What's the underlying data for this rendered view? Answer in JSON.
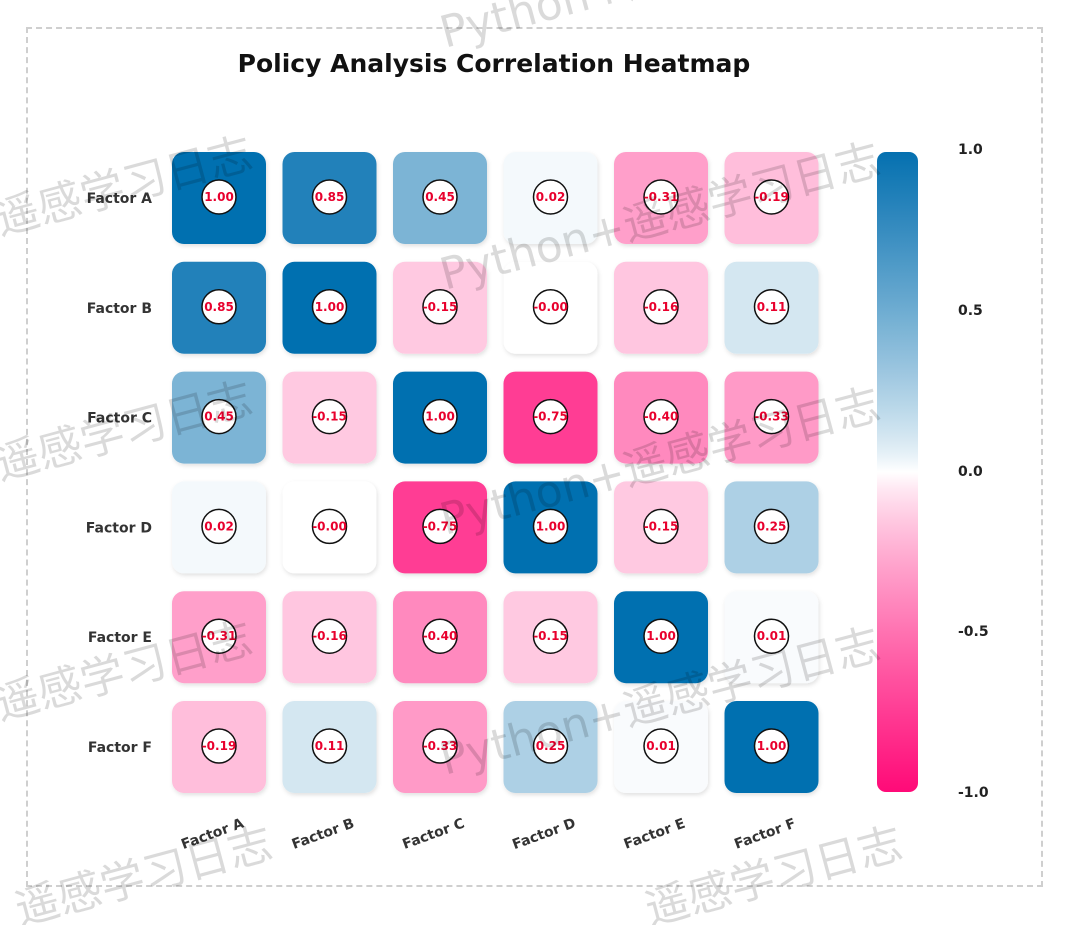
{
  "chart_data": {
    "type": "heatmap",
    "title": "Policy Analysis Correlation Heatmap",
    "rows": [
      "Factor A",
      "Factor B",
      "Factor C",
      "Factor D",
      "Factor E",
      "Factor F"
    ],
    "columns": [
      "Factor A",
      "Factor B",
      "Factor C",
      "Factor D",
      "Factor E",
      "Factor F"
    ],
    "values": [
      [
        1.0,
        0.85,
        0.45,
        0.02,
        -0.31,
        -0.19
      ],
      [
        0.85,
        1.0,
        -0.15,
        -0.0,
        -0.16,
        0.11
      ],
      [
        0.45,
        -0.15,
        1.0,
        -0.75,
        -0.4,
        -0.33
      ],
      [
        0.02,
        -0.0,
        -0.75,
        1.0,
        -0.15,
        0.25
      ],
      [
        -0.31,
        -0.16,
        -0.4,
        -0.15,
        1.0,
        0.01
      ],
      [
        -0.19,
        0.11,
        -0.33,
        0.25,
        0.01,
        1.0
      ]
    ],
    "labels": [
      [
        "1.00",
        "0.85",
        "0.45",
        "0.02",
        "-0.31",
        "-0.19"
      ],
      [
        "0.85",
        "1.00",
        "-0.15",
        "-0.00",
        "-0.16",
        "0.11"
      ],
      [
        "0.45",
        "-0.15",
        "1.00",
        "-0.75",
        "-0.40",
        "-0.33"
      ],
      [
        "0.02",
        "-0.00",
        "-0.75",
        "1.00",
        "-0.15",
        "0.25"
      ],
      [
        "-0.31",
        "-0.16",
        "-0.40",
        "-0.15",
        "1.00",
        "0.01"
      ],
      [
        "-0.19",
        "0.11",
        "-0.33",
        "0.25",
        "0.01",
        "1.00"
      ]
    ],
    "colorbar": {
      "range": [
        -1.0,
        1.0
      ],
      "ticks": [
        "1.0",
        "0.5",
        "0.0",
        "-0.5",
        "-1.0"
      ],
      "colors": {
        "negative": "#ff0a78",
        "zero": "#ffffff",
        "positive": "#0570b0"
      }
    },
    "grid": false,
    "legend": "right"
  },
  "watermark": {
    "text_cn": "遥感学习日志",
    "text_combo": "Python+遥感学习日志"
  }
}
